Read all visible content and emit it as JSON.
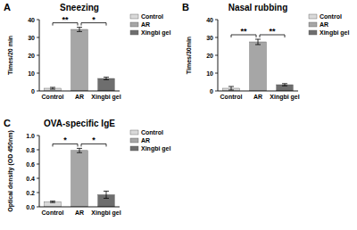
{
  "chart_data": [
    {
      "type": "bar",
      "panel": "A",
      "title": "Sneezing",
      "ylabel": "Times/20 min",
      "categories": [
        "Control",
        "AR",
        "Xingbi gel"
      ],
      "values": [
        1.5,
        34.5,
        7
      ],
      "errors": [
        0.5,
        1.2,
        0.7
      ],
      "colors": [
        "#d9d9d9",
        "#a6a6a6",
        "#6e6e6e"
      ],
      "ylim": [
        0,
        40
      ],
      "yticks": [
        0,
        10,
        20,
        30,
        40
      ],
      "legend": "right",
      "annotations": [
        {
          "text": "**",
          "between": [
            "Control",
            "AR"
          ]
        },
        {
          "text": "*",
          "between": [
            "AR",
            "Xingbi gel"
          ]
        }
      ]
    },
    {
      "type": "bar",
      "panel": "B",
      "title": "Nasal rubbing",
      "ylabel": "Times/30min",
      "categories": [
        "Control",
        "AR",
        "Xingbi gel"
      ],
      "values": [
        1.5,
        27.5,
        3.5
      ],
      "errors": [
        1,
        1.5,
        0.6
      ],
      "colors": [
        "#d9d9d9",
        "#a6a6a6",
        "#6e6e6e"
      ],
      "ylim": [
        0,
        40
      ],
      "yticks": [
        0,
        10,
        20,
        30,
        40
      ],
      "legend": "right",
      "annotations": [
        {
          "text": "**",
          "between": [
            "Control",
            "AR"
          ]
        },
        {
          "text": "**",
          "between": [
            "AR",
            "Xingbi gel"
          ]
        }
      ]
    },
    {
      "type": "bar",
      "panel": "C",
      "title": "OVA-specific IgE",
      "ylabel": "Optical density (OD 450nm)",
      "categories": [
        "Control",
        "AR",
        "Xingbi gel"
      ],
      "values": [
        0.07,
        0.79,
        0.17
      ],
      "errors": [
        0.01,
        0.03,
        0.05
      ],
      "colors": [
        "#d9d9d9",
        "#a6a6a6",
        "#6e6e6e"
      ],
      "ylim": [
        0,
        1
      ],
      "yticks": [
        {
          "value": 0,
          "label": "0.0"
        },
        {
          "value": 0.2,
          "label": "0.2"
        },
        {
          "value": 0.4,
          "label": "0.4"
        },
        {
          "value": 0.6,
          "label": "0.6"
        },
        {
          "value": 0.8,
          "label": "0.8"
        },
        {
          "value": 1,
          "label": "1.0"
        }
      ],
      "legend": "right",
      "annotations": [
        {
          "text": "*",
          "between": [
            "Control",
            "AR"
          ]
        },
        {
          "text": "*",
          "between": [
            "AR",
            "Xingbi gel"
          ]
        }
      ]
    }
  ]
}
